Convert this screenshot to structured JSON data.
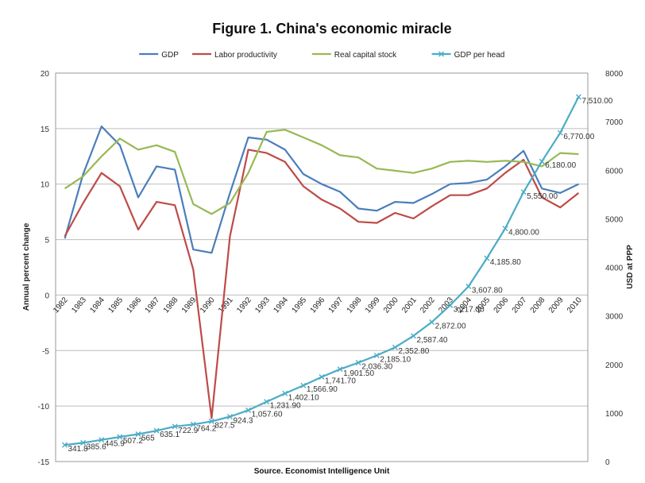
{
  "chart_data": {
    "type": "line",
    "title": "Figure 1. China's economic miracle",
    "source": "Source. Economist Intelligence Unit",
    "ylabel": "Annual percent change",
    "y2label": "USD at PPP",
    "ylim": [
      -15,
      20
    ],
    "yticks": [
      -15,
      -10,
      -5,
      0,
      5,
      10,
      15,
      20
    ],
    "y2lim": [
      0,
      8000
    ],
    "y2ticks": [
      0,
      1000,
      2000,
      3000,
      4000,
      5000,
      6000,
      7000,
      8000
    ],
    "legend_position": "top",
    "grid": true,
    "x": [
      "1982",
      "1983",
      "1984",
      "1985",
      "1986",
      "1987",
      "1988",
      "1989",
      "1990",
      "1991",
      "1992",
      "1993",
      "1994",
      "1995",
      "1996",
      "1997",
      "1998",
      "1999",
      "2000",
      "2001",
      "2002",
      "2003",
      "2004",
      "2005",
      "2006",
      "2007",
      "2008",
      "2009",
      "2010"
    ],
    "series": [
      {
        "name": "GDP",
        "axis": "left",
        "color": "#4a7ebb",
        "values": [
          5.1,
          10.9,
          15.2,
          13.5,
          8.8,
          11.6,
          11.3,
          4.1,
          3.8,
          9.2,
          14.2,
          14.0,
          13.1,
          10.9,
          10.0,
          9.3,
          7.8,
          7.6,
          8.4,
          8.3,
          9.1,
          10.0,
          10.1,
          10.4,
          11.6,
          13.0,
          9.6,
          9.2,
          10.0
        ]
      },
      {
        "name": "Labor productivity",
        "axis": "left",
        "color": "#be4b48",
        "values": [
          5.3,
          8.3,
          11.0,
          9.8,
          5.9,
          8.4,
          8.1,
          2.3,
          -11.1,
          5.3,
          13.1,
          12.8,
          12.0,
          9.8,
          8.6,
          7.8,
          6.6,
          6.5,
          7.4,
          6.9,
          8.0,
          9.0,
          9.0,
          9.6,
          11.0,
          12.2,
          8.8,
          7.9,
          9.2
        ]
      },
      {
        "name": "Real capital stock",
        "axis": "left",
        "color": "#98b954",
        "values": [
          9.6,
          10.7,
          12.5,
          14.1,
          13.1,
          13.5,
          12.9,
          8.2,
          7.3,
          8.3,
          11.0,
          14.7,
          14.9,
          14.2,
          13.5,
          12.6,
          12.4,
          11.4,
          11.2,
          11.0,
          11.4,
          12.0,
          12.1,
          12.0,
          12.1,
          12.0,
          11.6,
          12.8,
          12.7
        ]
      },
      {
        "name": "GDP per head",
        "axis": "right",
        "color": "#4bacc6",
        "values": [
          341.8,
          385.6,
          445.9,
          507.2,
          565,
          635.1,
          722.9,
          764.2,
          827.5,
          924.3,
          1057.6,
          1231.9,
          1402.1,
          1566.9,
          1741.7,
          1901.5,
          2036.3,
          2185.1,
          2352.8,
          2587.4,
          2872.0,
          3217.3,
          3607.8,
          4185.8,
          4800.0,
          5550.0,
          6180.0,
          6770.0,
          7510.0
        ],
        "labels": [
          "341.8",
          "385.6",
          "445.9",
          "507.2",
          "565",
          "635.1",
          "722.9",
          "764.2",
          "827.5",
          "924.3",
          "1,057.60",
          "1,231.90",
          "1,402.10",
          "1,566.90",
          "1,741.70",
          "1,901.50",
          "2,036.30",
          "2,185.10",
          "2,352.80",
          "2,587.40",
          "2,872.00",
          "3,217.30",
          "3,607.80",
          "4,185.80",
          "4,800.00",
          "5,550.00",
          "6,180.00",
          "6,770.00",
          "7,510.00"
        ]
      }
    ]
  }
}
